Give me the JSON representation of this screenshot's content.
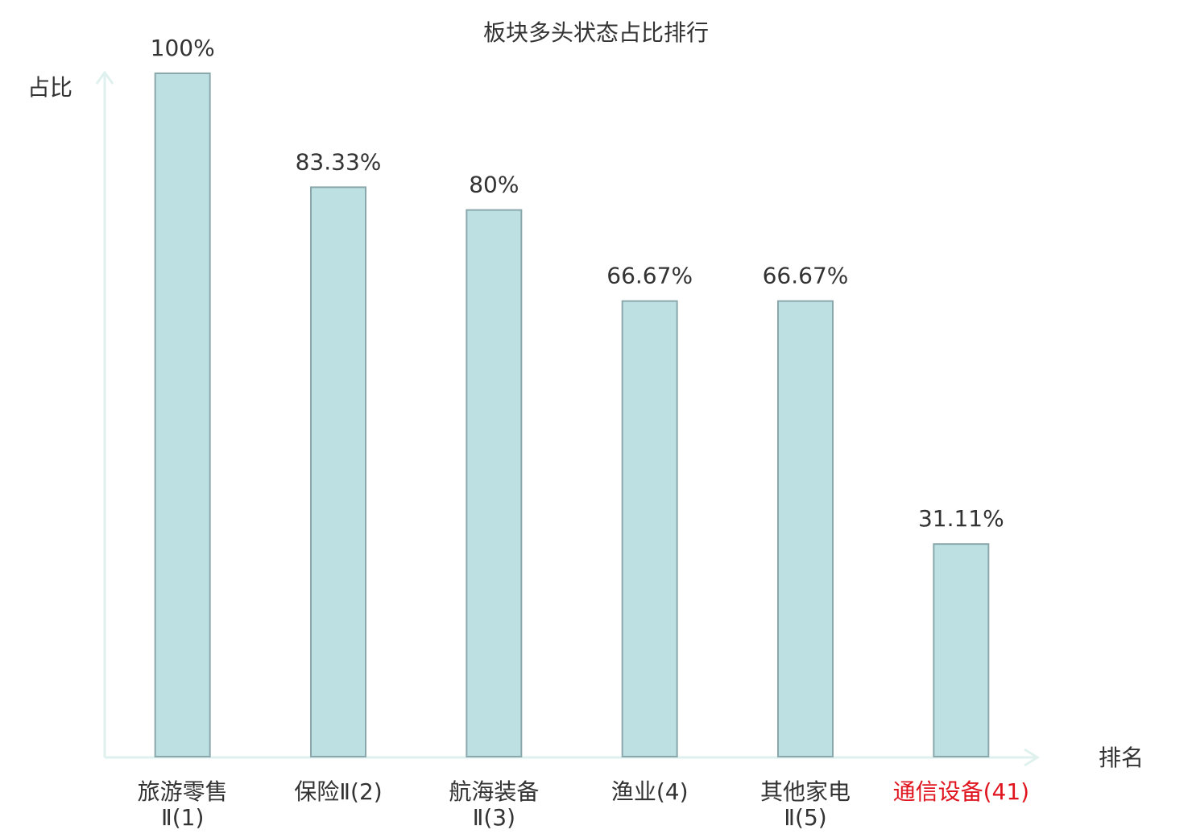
{
  "chart_data": {
    "type": "bar",
    "title": "板块多头状态占比排行",
    "y_label": "占比",
    "x_label": "排名",
    "categories": [
      "旅游零售Ⅱ(1)",
      "保险Ⅱ(2)",
      "航海装备Ⅱ(3)",
      "渔业(4)",
      "其他家电Ⅱ(5)",
      "通信设备(41)"
    ],
    "values": [
      100,
      83.33,
      80,
      66.67,
      66.67,
      31.11
    ],
    "value_labels": [
      "100%",
      "83.33%",
      "80%",
      "66.67%",
      "66.67%",
      "31.11%"
    ],
    "color": "#bde0e3",
    "edge_color": "#8aa8ab",
    "highlight_index": 5,
    "highlight_color": "#e0141e",
    "ylim": [
      0,
      100
    ],
    "grid": false
  }
}
